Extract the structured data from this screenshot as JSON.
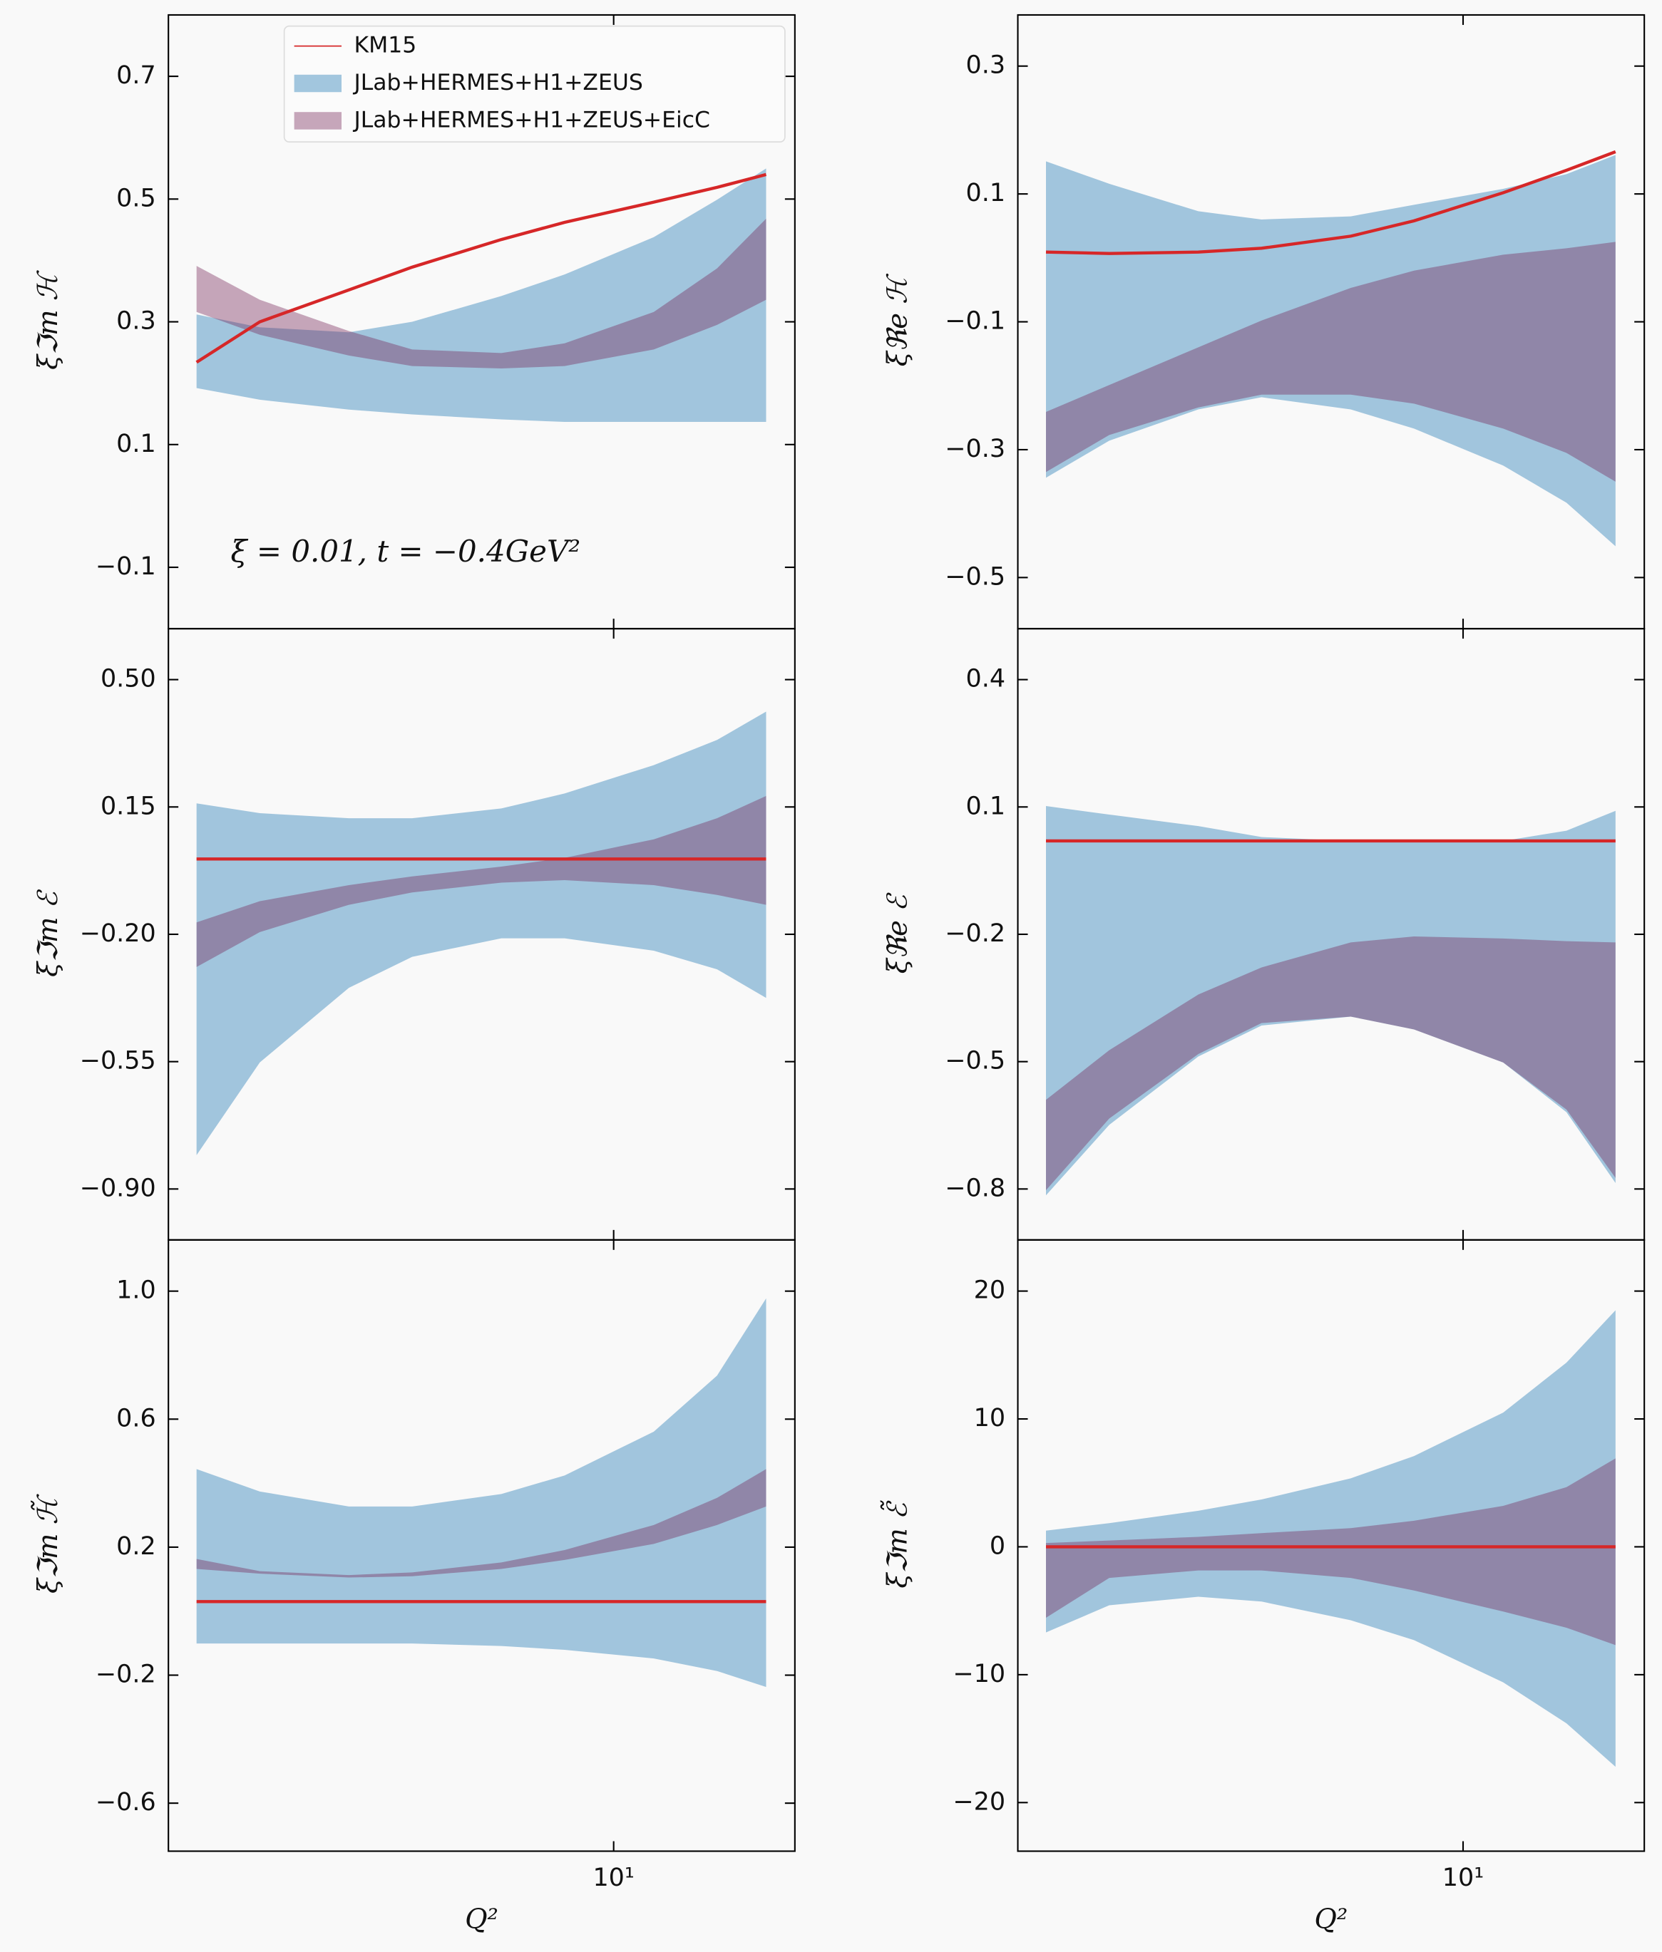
{
  "chart_data": [
    {
      "type": "band",
      "xscale": "log",
      "x": [
        1.5,
        2,
        3,
        4,
        6,
        8,
        12,
        16,
        20
      ],
      "xlim": [
        1.32,
        22.8
      ],
      "xticks": [
        10
      ],
      "ylabel": "ξℑm ℋ",
      "ylim": [
        -0.2,
        0.8
      ],
      "yticks": [
        {
          "value": -0.1,
          "label": "−0.1"
        },
        0.1,
        0.3,
        0.5,
        0.7
      ],
      "legend": "upper right",
      "annotation": "ξ = 0.01, t = −0.4GeV²",
      "series": [
        {
          "name": "KM15",
          "color": "#d62728",
          "values": [
            0.234,
            0.3,
            0.352,
            0.389,
            0.434,
            0.462,
            0.495,
            0.519,
            0.54
          ]
        },
        {
          "name": "JLab+HERMES+H1+ZEUS",
          "color": "#1f77b4",
          "alpha": 0.4,
          "lower": [
            0.192,
            0.173,
            0.157,
            0.149,
            0.141,
            0.137,
            0.137,
            0.137,
            0.137
          ],
          "upper": [
            0.312,
            0.291,
            0.283,
            0.3,
            0.342,
            0.377,
            0.438,
            0.499,
            0.55
          ]
        },
        {
          "name": "JLab+HERMES+H1+ZEUS+EicC",
          "color": "#78285a",
          "alpha": 0.4,
          "lower": [
            0.316,
            0.279,
            0.245,
            0.228,
            0.224,
            0.228,
            0.255,
            0.295,
            0.336
          ],
          "upper": [
            0.391,
            0.336,
            0.285,
            0.255,
            0.249,
            0.265,
            0.316,
            0.387,
            0.468
          ]
        }
      ]
    },
    {
      "type": "band",
      "xscale": "log",
      "x": [
        1.5,
        2,
        3,
        4,
        6,
        8,
        12,
        16,
        20
      ],
      "xlim": [
        1.32,
        22.8
      ],
      "xticks": [
        10
      ],
      "ylabel": "ξℜe ℋ",
      "ylim": [
        -0.58,
        0.38
      ],
      "yticks": [
        {
          "value": -0.5,
          "label": "−0.5"
        },
        {
          "value": -0.3,
          "label": "−0.3"
        },
        {
          "value": -0.1,
          "label": "−0.1"
        },
        0.1,
        0.3
      ],
      "series": [
        {
          "color": "#d62728",
          "values": [
            0.009,
            0.007,
            0.009,
            0.015,
            0.034,
            0.058,
            0.102,
            0.137,
            0.166
          ]
        },
        {
          "color": "#1f77b4",
          "alpha": 0.4,
          "lower": [
            -0.344,
            -0.286,
            -0.237,
            -0.218,
            -0.237,
            -0.267,
            -0.325,
            -0.383,
            -0.451
          ],
          "upper": [
            0.151,
            0.116,
            0.073,
            0.06,
            0.065,
            0.083,
            0.108,
            0.131,
            0.161
          ]
        },
        {
          "color": "#78285a",
          "alpha": 0.4,
          "lower": [
            -0.335,
            -0.277,
            -0.234,
            -0.214,
            -0.214,
            -0.228,
            -0.267,
            -0.305,
            -0.35
          ],
          "upper": [
            -0.241,
            -0.199,
            -0.14,
            -0.098,
            -0.047,
            -0.02,
            0.005,
            0.015,
            0.025
          ]
        }
      ]
    },
    {
      "type": "band",
      "xscale": "log",
      "x": [
        1.5,
        2,
        3,
        4,
        6,
        8,
        12,
        16,
        20
      ],
      "xlim": [
        1.32,
        22.8
      ],
      "xticks": [
        10
      ],
      "ylabel": "ξℑm ℰ",
      "ylim": [
        -1.04,
        0.64
      ],
      "yticks": [
        {
          "value": -0.9,
          "label": "−0.90"
        },
        {
          "value": -0.55,
          "label": "−0.55"
        },
        {
          "value": -0.2,
          "label": "−0.20"
        },
        {
          "value": 0.15,
          "label": "0.15"
        },
        {
          "value": 0.5,
          "label": "0.50"
        }
      ],
      "series": [
        {
          "color": "#d62728",
          "values": [
            0.007,
            0.007,
            0.007,
            0.007,
            0.007,
            0.007,
            0.007,
            0.007,
            0.007
          ]
        },
        {
          "color": "#1f77b4",
          "alpha": 0.4,
          "lower": [
            -0.807,
            -0.552,
            -0.347,
            -0.262,
            -0.211,
            -0.211,
            -0.245,
            -0.296,
            -0.375
          ],
          "upper": [
            0.16,
            0.133,
            0.119,
            0.119,
            0.146,
            0.187,
            0.265,
            0.334,
            0.412
          ]
        },
        {
          "color": "#78285a",
          "alpha": 0.4,
          "lower": [
            -0.29,
            -0.194,
            -0.119,
            -0.085,
            -0.058,
            -0.051,
            -0.065,
            -0.092,
            -0.119
          ],
          "upper": [
            -0.167,
            -0.109,
            -0.065,
            -0.041,
            -0.014,
            0.01,
            0.061,
            0.119,
            0.18
          ]
        }
      ]
    },
    {
      "type": "band",
      "xscale": "log",
      "x": [
        1.5,
        2,
        3,
        4,
        6,
        8,
        12,
        16,
        20
      ],
      "xlim": [
        1.32,
        22.8
      ],
      "xticks": [
        10
      ],
      "ylabel": "ξℜe ℰ",
      "ylim": [
        -0.92,
        0.52
      ],
      "yticks": [
        {
          "value": -0.8,
          "label": "−0.8"
        },
        {
          "value": -0.5,
          "label": "−0.5"
        },
        {
          "value": -0.2,
          "label": "−0.2"
        },
        0.1,
        0.4
      ],
      "series": [
        {
          "color": "#d62728",
          "values": [
            0.02,
            0.02,
            0.02,
            0.02,
            0.02,
            0.02,
            0.02,
            0.02,
            0.02
          ]
        },
        {
          "color": "#1f77b4",
          "alpha": 0.4,
          "lower": [
            -0.815,
            -0.649,
            -0.488,
            -0.415,
            -0.394,
            -0.424,
            -0.502,
            -0.619,
            -0.786
          ],
          "upper": [
            0.102,
            0.082,
            0.055,
            0.029,
            0.02,
            0.02,
            0.02,
            0.044,
            0.091
          ]
        },
        {
          "color": "#78285a",
          "alpha": 0.4,
          "lower": [
            -0.803,
            -0.634,
            -0.482,
            -0.409,
            -0.394,
            -0.424,
            -0.502,
            -0.613,
            -0.774
          ],
          "upper": [
            -0.59,
            -0.473,
            -0.342,
            -0.278,
            -0.219,
            -0.205,
            -0.21,
            -0.216,
            -0.219
          ]
        }
      ]
    },
    {
      "type": "band",
      "xscale": "log",
      "x": [
        1.5,
        2,
        3,
        4,
        6,
        8,
        12,
        16,
        20
      ],
      "xlim": [
        1.32,
        22.8
      ],
      "xticks": [
        {
          "value": 10,
          "label": "10¹"
        }
      ],
      "xlabel": "Q²",
      "ylabel": "ξℑm ℋ̃",
      "ylim": [
        -0.75,
        1.16
      ],
      "yticks": [
        {
          "value": -0.6,
          "label": "−0.6"
        },
        {
          "value": -0.2,
          "label": "−0.2"
        },
        0.2,
        0.6,
        {
          "value": 1.0,
          "label": "1.0"
        }
      ],
      "series": [
        {
          "color": "#d62728",
          "values": [
            0.03,
            0.03,
            0.03,
            0.03,
            0.03,
            0.03,
            0.03,
            0.03,
            0.03
          ]
        },
        {
          "color": "#1f77b4",
          "alpha": 0.4,
          "lower": [
            -0.101,
            -0.101,
            -0.101,
            -0.101,
            -0.109,
            -0.121,
            -0.148,
            -0.187,
            -0.237
          ],
          "upper": [
            0.444,
            0.374,
            0.327,
            0.327,
            0.366,
            0.424,
            0.561,
            0.736,
            0.977
          ]
        },
        {
          "color": "#78285a",
          "alpha": 0.4,
          "lower": [
            0.132,
            0.117,
            0.105,
            0.109,
            0.132,
            0.16,
            0.21,
            0.269,
            0.327
          ],
          "upper": [
            0.163,
            0.125,
            0.113,
            0.121,
            0.152,
            0.191,
            0.269,
            0.354,
            0.444
          ]
        }
      ]
    },
    {
      "type": "band",
      "xscale": "log",
      "x": [
        1.5,
        2,
        3,
        4,
        6,
        8,
        12,
        16,
        20
      ],
      "xlim": [
        1.32,
        22.8
      ],
      "xticks": [
        {
          "value": 10,
          "label": "10¹"
        }
      ],
      "xlabel": "Q²",
      "ylabel": "ξℑm ℰ̃",
      "ylim": [
        -23.8,
        24
      ],
      "yticks": [
        {
          "value": -20,
          "label": "−20"
        },
        {
          "value": -10,
          "label": "−10"
        },
        0,
        10,
        20
      ],
      "series": [
        {
          "color": "#d62728",
          "values": [
            0,
            0,
            0,
            0,
            0,
            0,
            0,
            0,
            0
          ]
        },
        {
          "color": "#1f77b4",
          "alpha": 0.4,
          "lower": [
            -6.7,
            -4.57,
            -3.9,
            -4.28,
            -5.74,
            -7.3,
            -10.6,
            -13.8,
            -17.2
          ],
          "upper": [
            1.27,
            1.85,
            2.82,
            3.7,
            5.36,
            7.1,
            10.5,
            14.4,
            18.5
          ]
        },
        {
          "color": "#78285a",
          "alpha": 0.4,
          "lower": [
            -5.55,
            -2.43,
            -1.85,
            -1.85,
            -2.43,
            -3.41,
            -5.06,
            -6.33,
            -7.69
          ],
          "upper": [
            0.29,
            0.49,
            0.78,
            1.07,
            1.46,
            2.04,
            3.21,
            4.67,
            6.91
          ]
        }
      ]
    }
  ]
}
